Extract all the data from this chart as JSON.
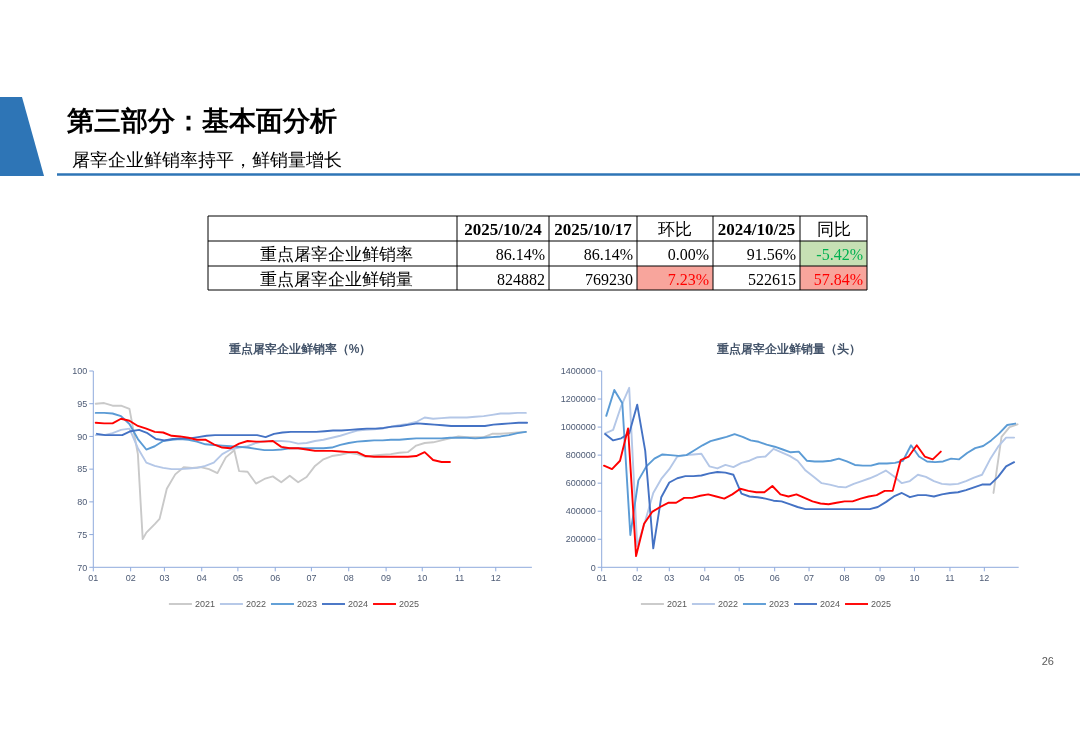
{
  "chart_data": [
    {
      "type": "other",
      "title": "第三部分：基本面分析",
      "subtitle": "屠宰企业鲜销率持平，鲜销量增长",
      "annotations": [
        "2025/10/24",
        "2025/10/17",
        "环比",
        "2024/10/25",
        "同比",
        "重点屠宰企业鲜销率",
        "86.14%",
        "86.14%",
        "0.00%",
        "91.56%",
        "-5.42%",
        "重点屠宰企业鲜销量",
        "824882",
        "769230",
        "7.23%",
        "522615",
        "57.84%",
        "26"
      ]
    },
    {
      "type": "line",
      "title": "重点屠宰企业鲜销率（%）",
      "legend": "bottom",
      "xlim": [
        "--01-01",
        "--12-31"
      ],
      "xticks": [
        {
          "value": "--01-01",
          "label": "01"
        },
        {
          "value": "--02-01",
          "label": "02"
        },
        {
          "value": "--03-01",
          "label": "03"
        },
        {
          "value": "--04-01",
          "label": "04"
        },
        {
          "value": "--05-01",
          "label": "05"
        },
        {
          "value": "--06-01",
          "label": "06"
        },
        {
          "value": "--07-01",
          "label": "07"
        },
        {
          "value": "--08-01",
          "label": "08"
        },
        {
          "value": "--09-01",
          "label": "09"
        },
        {
          "value": "--10-01",
          "label": "10"
        },
        {
          "value": "--11-01",
          "label": "11"
        },
        {
          "value": "--12-01",
          "label": "12"
        }
      ],
      "ylim": [
        70,
        100
      ],
      "yticks": [
        70,
        75,
        80,
        85,
        90,
        95,
        100
      ],
      "series": [
        {
          "name": "2021",
          "color": "#c9c9c9",
          "x": [
            "--01-03",
            "--01-10",
            "--01-17",
            "--01-24",
            "--01-31",
            "--02-07",
            "--02-11",
            "--02-14",
            "--02-21",
            "--02-25",
            "--03-03",
            "--03-10",
            "--03-17",
            "--03-24",
            "--03-31",
            "--04-07",
            "--04-14",
            "--04-21",
            "--04-28",
            "--05-02",
            "--05-09",
            "--05-16",
            "--05-23",
            "--05-30",
            "--06-06",
            "--06-13",
            "--06-20",
            "--06-27",
            "--07-04",
            "--07-11",
            "--07-18",
            "--07-25",
            "--08-01",
            "--08-08",
            "--08-15",
            "--08-22",
            "--08-29",
            "--09-05",
            "--09-12",
            "--09-19",
            "--09-26",
            "--10-03",
            "--10-10",
            "--10-17",
            "--10-24",
            "--10-31",
            "--11-07",
            "--11-14",
            "--11-21",
            "--11-28",
            "--12-05",
            "--12-12",
            "--12-19",
            "--12-26"
          ],
          "values": [
            95.0,
            95.1,
            94.7,
            94.7,
            94.2,
            87.3,
            74.3,
            75.3,
            76.6,
            77.4,
            82.0,
            84.2,
            85.3,
            85.2,
            85.3,
            85.0,
            84.4,
            86.8,
            87.9,
            84.7,
            84.6,
            82.8,
            83.5,
            83.9,
            83.0,
            84.0,
            83.0,
            83.8,
            85.5,
            86.5,
            87.0,
            87.2,
            87.5,
            87.3,
            86.9,
            87.1,
            87.2,
            87.3,
            87.5,
            87.6,
            88.6,
            89.0,
            89.1,
            89.4,
            89.7,
            90.0,
            89.9,
            89.9,
            89.9,
            90.4,
            90.4,
            90.5,
            90.6,
            90.7
          ]
        },
        {
          "name": "2022",
          "color": "#b4c7e7",
          "x": [
            "--01-03",
            "--01-10",
            "--01-17",
            "--01-24",
            "--01-31",
            "--02-07",
            "--02-14",
            "--02-21",
            "--02-28",
            "--03-07",
            "--03-14",
            "--03-21",
            "--03-28",
            "--04-04",
            "--04-11",
            "--04-18",
            "--04-25",
            "--05-02",
            "--05-09",
            "--05-16",
            "--05-23",
            "--05-30",
            "--06-06",
            "--06-13",
            "--06-20",
            "--06-27",
            "--07-04",
            "--07-11",
            "--07-18",
            "--07-25",
            "--08-01",
            "--08-08",
            "--08-15",
            "--08-22",
            "--08-29",
            "--09-05",
            "--09-12",
            "--09-19",
            "--09-26",
            "--10-03",
            "--10-10",
            "--10-17",
            "--10-24",
            "--10-31",
            "--11-07",
            "--11-14",
            "--11-21",
            "--11-28",
            "--12-05",
            "--12-12",
            "--12-19",
            "--12-26"
          ],
          "values": [
            90.2,
            90.2,
            90.5,
            91.0,
            91.2,
            88.2,
            86.0,
            85.5,
            85.2,
            85.0,
            85.0,
            85.1,
            85.2,
            85.5,
            86.0,
            87.3,
            88.0,
            88.3,
            88.5,
            89.0,
            89.3,
            89.3,
            89.3,
            89.2,
            88.9,
            89.0,
            89.3,
            89.5,
            89.8,
            90.1,
            90.5,
            90.9,
            91.0,
            91.1,
            91.2,
            91.5,
            91.7,
            91.9,
            92.2,
            92.9,
            92.7,
            92.8,
            92.9,
            92.9,
            92.9,
            93.0,
            93.1,
            93.3,
            93.5,
            93.5,
            93.6,
            93.6
          ]
        },
        {
          "name": "2023",
          "color": "#5b9bd5",
          "x": [
            "--01-03",
            "--01-10",
            "--01-17",
            "--01-24",
            "--01-31",
            "--02-07",
            "--02-14",
            "--02-21",
            "--02-28",
            "--03-07",
            "--03-14",
            "--03-21",
            "--03-28",
            "--04-04",
            "--04-11",
            "--04-18",
            "--04-25",
            "--05-02",
            "--05-09",
            "--05-16",
            "--05-23",
            "--05-30",
            "--06-06",
            "--06-13",
            "--06-20",
            "--06-27",
            "--07-04",
            "--07-11",
            "--07-18",
            "--07-25",
            "--08-01",
            "--08-08",
            "--08-15",
            "--08-22",
            "--08-29",
            "--09-05",
            "--09-12",
            "--09-19",
            "--09-26",
            "--10-03",
            "--10-10",
            "--10-17",
            "--10-24",
            "--10-31",
            "--11-07",
            "--11-14",
            "--11-21",
            "--11-28",
            "--12-05",
            "--12-12",
            "--12-19",
            "--12-26"
          ],
          "values": [
            93.6,
            93.6,
            93.5,
            93.1,
            91.9,
            89.6,
            88.0,
            88.5,
            89.3,
            89.5,
            89.6,
            89.5,
            89.2,
            88.8,
            88.7,
            88.6,
            88.5,
            88.4,
            88.3,
            88.1,
            87.9,
            87.9,
            88.0,
            88.2,
            88.2,
            88.2,
            88.2,
            88.2,
            88.3,
            88.7,
            89.0,
            89.2,
            89.3,
            89.4,
            89.4,
            89.5,
            89.5,
            89.6,
            89.7,
            89.7,
            89.7,
            89.7,
            89.8,
            89.8,
            89.8,
            89.7,
            89.8,
            89.9,
            90.0,
            90.2,
            90.5,
            90.7
          ]
        },
        {
          "name": "2024",
          "color": "#4472c4",
          "x": [
            "--01-04",
            "--01-11",
            "--01-18",
            "--01-25",
            "--02-01",
            "--02-08",
            "--02-15",
            "--02-22",
            "--03-01",
            "--03-08",
            "--03-15",
            "--03-22",
            "--03-29",
            "--04-05",
            "--04-12",
            "--04-19",
            "--04-26",
            "--05-03",
            "--05-10",
            "--05-17",
            "--05-24",
            "--05-31",
            "--06-07",
            "--06-14",
            "--06-21",
            "--06-28",
            "--07-05",
            "--07-12",
            "--07-19",
            "--07-26",
            "--08-02",
            "--08-09",
            "--08-16",
            "--08-23",
            "--08-30",
            "--09-06",
            "--09-13",
            "--09-20",
            "--09-27",
            "--10-04",
            "--10-11",
            "--10-18",
            "--10-25",
            "--11-01",
            "--11-08",
            "--11-15",
            "--11-22",
            "--11-29",
            "--12-06",
            "--12-13",
            "--12-20",
            "--12-27"
          ],
          "values": [
            90.4,
            90.2,
            90.2,
            90.2,
            90.8,
            91.0,
            90.5,
            89.6,
            89.4,
            89.6,
            89.7,
            89.7,
            89.9,
            90.1,
            90.2,
            90.2,
            90.2,
            90.2,
            90.2,
            90.2,
            89.9,
            90.4,
            90.6,
            90.7,
            90.7,
            90.7,
            90.7,
            90.8,
            90.9,
            90.9,
            91.0,
            91.1,
            91.2,
            91.2,
            91.3,
            91.5,
            91.6,
            91.8,
            92.0,
            91.9,
            91.8,
            91.7,
            91.6,
            91.6,
            91.6,
            91.6,
            91.6,
            91.8,
            91.9,
            92.0,
            92.1,
            92.1
          ]
        },
        {
          "name": "2025",
          "color": "#ff0000",
          "x": [
            "--01-03",
            "--01-10",
            "--01-17",
            "--01-24",
            "--01-31",
            "--02-07",
            "--02-14",
            "--02-21",
            "--02-28",
            "--03-07",
            "--03-14",
            "--03-21",
            "--03-28",
            "--04-04",
            "--04-11",
            "--04-18",
            "--04-25",
            "--05-02",
            "--05-09",
            "--05-16",
            "--05-23",
            "--05-30",
            "--06-06",
            "--06-13",
            "--06-20",
            "--06-27",
            "--07-04",
            "--07-11",
            "--07-18",
            "--07-25",
            "--08-01",
            "--08-08",
            "--08-15",
            "--08-22",
            "--08-29",
            "--09-05",
            "--09-12",
            "--09-19",
            "--09-26",
            "--10-03",
            "--10-10",
            "--10-17",
            "--10-24"
          ],
          "values": [
            92.1,
            92.0,
            92.0,
            92.7,
            92.4,
            91.6,
            91.2,
            90.7,
            90.6,
            90.1,
            90.0,
            89.8,
            89.5,
            89.5,
            88.8,
            88.3,
            88.2,
            88.9,
            89.3,
            89.2,
            89.2,
            89.3,
            88.4,
            88.2,
            88.2,
            88.0,
            87.8,
            87.8,
            87.8,
            87.7,
            87.6,
            87.6,
            87.0,
            86.9,
            86.9,
            86.9,
            86.9,
            86.9,
            87.0,
            87.6,
            86.4,
            86.1,
            86.1
          ]
        }
      ]
    },
    {
      "type": "line",
      "title": "重点屠宰企业鲜销量（头）",
      "legend": "bottom",
      "xlim": [
        "--01-01",
        "--12-31"
      ],
      "xticks": [
        {
          "value": "--01-01",
          "label": "01"
        },
        {
          "value": "--02-01",
          "label": "02"
        },
        {
          "value": "--03-01",
          "label": "03"
        },
        {
          "value": "--04-01",
          "label": "04"
        },
        {
          "value": "--05-01",
          "label": "05"
        },
        {
          "value": "--06-01",
          "label": "06"
        },
        {
          "value": "--07-01",
          "label": "07"
        },
        {
          "value": "--08-01",
          "label": "08"
        },
        {
          "value": "--09-01",
          "label": "09"
        },
        {
          "value": "--10-01",
          "label": "10"
        },
        {
          "value": "--11-01",
          "label": "11"
        },
        {
          "value": "--12-01",
          "label": "12"
        }
      ],
      "ylim": [
        0,
        1400000
      ],
      "yticks": [
        0,
        200000,
        400000,
        600000,
        800000,
        1000000,
        1200000,
        1400000
      ],
      "series": [
        {
          "name": "2021",
          "color": "#c9c9c9",
          "x": [
            "--12-09",
            "--12-16",
            "--12-23",
            "--12-30"
          ],
          "values": [
            530000,
            930000,
            1000000,
            1020000
          ]
        },
        {
          "name": "2022",
          "color": "#b4c7e7",
          "x": [
            "--01-04",
            "--01-11",
            "--01-18",
            "--01-25",
            "--02-01",
            "--02-08",
            "--02-15",
            "--02-22",
            "--03-01",
            "--03-08",
            "--03-15",
            "--03-22",
            "--03-29",
            "--04-05",
            "--04-12",
            "--04-19",
            "--04-26",
            "--05-03",
            "--05-10",
            "--05-17",
            "--05-24",
            "--05-31",
            "--06-07",
            "--06-14",
            "--06-21",
            "--06-28",
            "--07-05",
            "--07-12",
            "--07-19",
            "--07-26",
            "--08-02",
            "--08-09",
            "--08-16",
            "--08-23",
            "--08-30",
            "--09-06",
            "--09-13",
            "--09-20",
            "--09-27",
            "--10-04",
            "--10-11",
            "--10-18",
            "--10-25",
            "--11-01",
            "--11-08",
            "--11-15",
            "--11-22",
            "--11-29",
            "--12-06",
            "--12-13",
            "--12-20",
            "--12-27"
          ],
          "values": [
            955000,
            980000,
            1150000,
            1280000,
            150000,
            330000,
            530000,
            630000,
            700000,
            790000,
            800000,
            805000,
            810000,
            720000,
            705000,
            730000,
            715000,
            745000,
            760000,
            785000,
            790000,
            845000,
            820000,
            795000,
            760000,
            690000,
            645000,
            600000,
            590000,
            575000,
            570000,
            595000,
            615000,
            635000,
            660000,
            690000,
            650000,
            600000,
            615000,
            660000,
            645000,
            615000,
            595000,
            590000,
            595000,
            615000,
            640000,
            660000,
            770000,
            860000,
            925000,
            925000
          ]
        },
        {
          "name": "2023",
          "color": "#5b9bd5",
          "x": [
            "--01-05",
            "--01-12",
            "--01-19",
            "--01-26",
            "--02-02",
            "--02-09",
            "--02-16",
            "--02-23",
            "--03-02",
            "--03-09",
            "--03-16",
            "--03-23",
            "--03-30",
            "--04-06",
            "--04-13",
            "--04-20",
            "--04-27",
            "--05-04",
            "--05-11",
            "--05-18",
            "--05-25",
            "--06-01",
            "--06-08",
            "--06-15",
            "--06-22",
            "--06-29",
            "--07-06",
            "--07-13",
            "--07-20",
            "--07-27",
            "--08-03",
            "--08-10",
            "--08-17",
            "--08-24",
            "--08-31",
            "--09-07",
            "--09-14",
            "--09-21",
            "--09-28",
            "--10-05",
            "--10-12",
            "--10-19",
            "--10-26",
            "--11-02",
            "--11-09",
            "--11-16",
            "--11-23",
            "--11-30",
            "--12-07",
            "--12-14",
            "--12-21",
            "--12-28"
          ],
          "values": [
            1080000,
            1265000,
            1170000,
            230000,
            620000,
            720000,
            775000,
            805000,
            800000,
            795000,
            800000,
            835000,
            870000,
            900000,
            915000,
            930000,
            950000,
            930000,
            905000,
            895000,
            875000,
            860000,
            840000,
            820000,
            825000,
            760000,
            755000,
            755000,
            760000,
            775000,
            755000,
            730000,
            725000,
            725000,
            740000,
            740000,
            745000,
            760000,
            870000,
            790000,
            755000,
            750000,
            755000,
            775000,
            770000,
            815000,
            850000,
            865000,
            905000,
            955000,
            1015000,
            1025000
          ]
        },
        {
          "name": "2024",
          "color": "#4472c4",
          "x": [
            "--01-04",
            "--01-11",
            "--01-18",
            "--01-25",
            "--02-01",
            "--02-08",
            "--02-15",
            "--02-22",
            "--03-01",
            "--03-08",
            "--03-15",
            "--03-22",
            "--03-29",
            "--04-05",
            "--04-12",
            "--04-19",
            "--04-26",
            "--05-03",
            "--05-10",
            "--05-17",
            "--05-24",
            "--05-31",
            "--06-07",
            "--06-14",
            "--06-21",
            "--06-28",
            "--07-05",
            "--07-12",
            "--07-19",
            "--07-26",
            "--08-02",
            "--08-09",
            "--08-16",
            "--08-23",
            "--08-30",
            "--09-06",
            "--09-13",
            "--09-20",
            "--09-27",
            "--10-04",
            "--10-11",
            "--10-18",
            "--10-25",
            "--11-01",
            "--11-08",
            "--11-15",
            "--11-22",
            "--11-29",
            "--12-06",
            "--12-13",
            "--12-20",
            "--12-27"
          ],
          "values": [
            950000,
            905000,
            920000,
            955000,
            1160000,
            830000,
            135000,
            500000,
            605000,
            635000,
            650000,
            650000,
            655000,
            670000,
            680000,
            675000,
            660000,
            525000,
            505000,
            500000,
            490000,
            475000,
            470000,
            450000,
            430000,
            415000,
            415000,
            415000,
            415000,
            415000,
            415000,
            415000,
            415000,
            415000,
            430000,
            465000,
            505000,
            530000,
            500000,
            515000,
            515000,
            505000,
            520000,
            530000,
            535000,
            550000,
            570000,
            590000,
            590000,
            645000,
            720000,
            750000
          ]
        },
        {
          "name": "2025",
          "color": "#ff0000",
          "x": [
            "--01-03",
            "--01-10",
            "--01-17",
            "--01-24",
            "--01-31",
            "--02-07",
            "--02-14",
            "--02-21",
            "--02-28",
            "--03-07",
            "--03-14",
            "--03-21",
            "--03-28",
            "--04-04",
            "--04-11",
            "--04-18",
            "--04-25",
            "--05-02",
            "--05-09",
            "--05-16",
            "--05-23",
            "--05-30",
            "--06-06",
            "--06-13",
            "--06-20",
            "--06-27",
            "--07-04",
            "--07-11",
            "--07-18",
            "--07-25",
            "--08-01",
            "--08-08",
            "--08-15",
            "--08-22",
            "--08-29",
            "--09-05",
            "--09-12",
            "--09-19",
            "--09-26",
            "--10-03",
            "--10-10",
            "--10-17",
            "--10-24"
          ],
          "values": [
            725000,
            700000,
            760000,
            990000,
            80000,
            310000,
            395000,
            430000,
            460000,
            460000,
            495000,
            495000,
            510000,
            520000,
            505000,
            490000,
            520000,
            560000,
            545000,
            535000,
            535000,
            580000,
            520000,
            505000,
            520000,
            495000,
            470000,
            455000,
            450000,
            460000,
            470000,
            470000,
            490000,
            505000,
            515000,
            545000,
            545000,
            765000,
            790000,
            870000,
            790000,
            770000,
            825000
          ]
        }
      ]
    }
  ]
}
